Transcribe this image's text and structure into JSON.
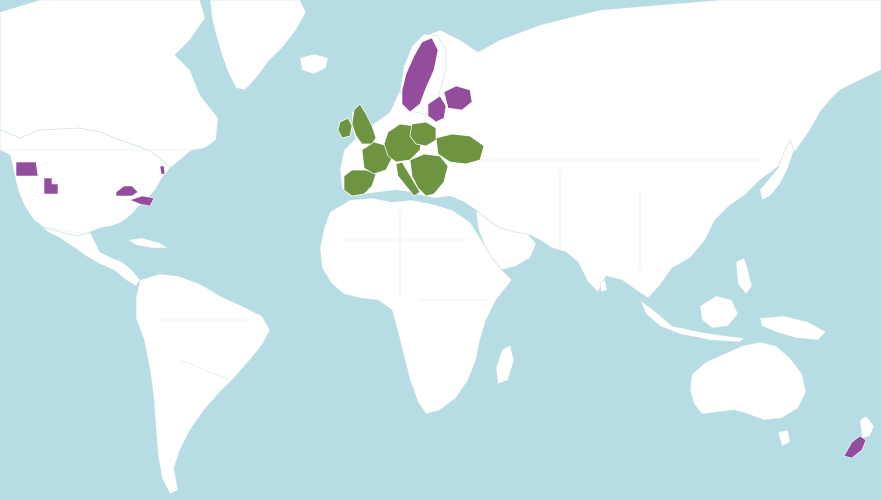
{
  "map": {
    "ocean_color": "#b5dde3",
    "land_color": "#ffffff",
    "coast_color": "#c6dde1",
    "legend": [
      {
        "key": "native",
        "color": "#6e9442"
      },
      {
        "key": "introduced",
        "color": "#944c9c"
      }
    ],
    "regions": {
      "native": [
        "united-kingdom",
        "ireland",
        "iberia",
        "france",
        "central-europe",
        "poland",
        "ukraine",
        "balkans",
        "italy"
      ],
      "introduced": [
        "oregon",
        "utah",
        "kentucky",
        "north-carolina",
        "new-jersey",
        "sweden-norway",
        "baltic-states",
        "finland-south",
        "new-zealand-south-island"
      ]
    }
  }
}
